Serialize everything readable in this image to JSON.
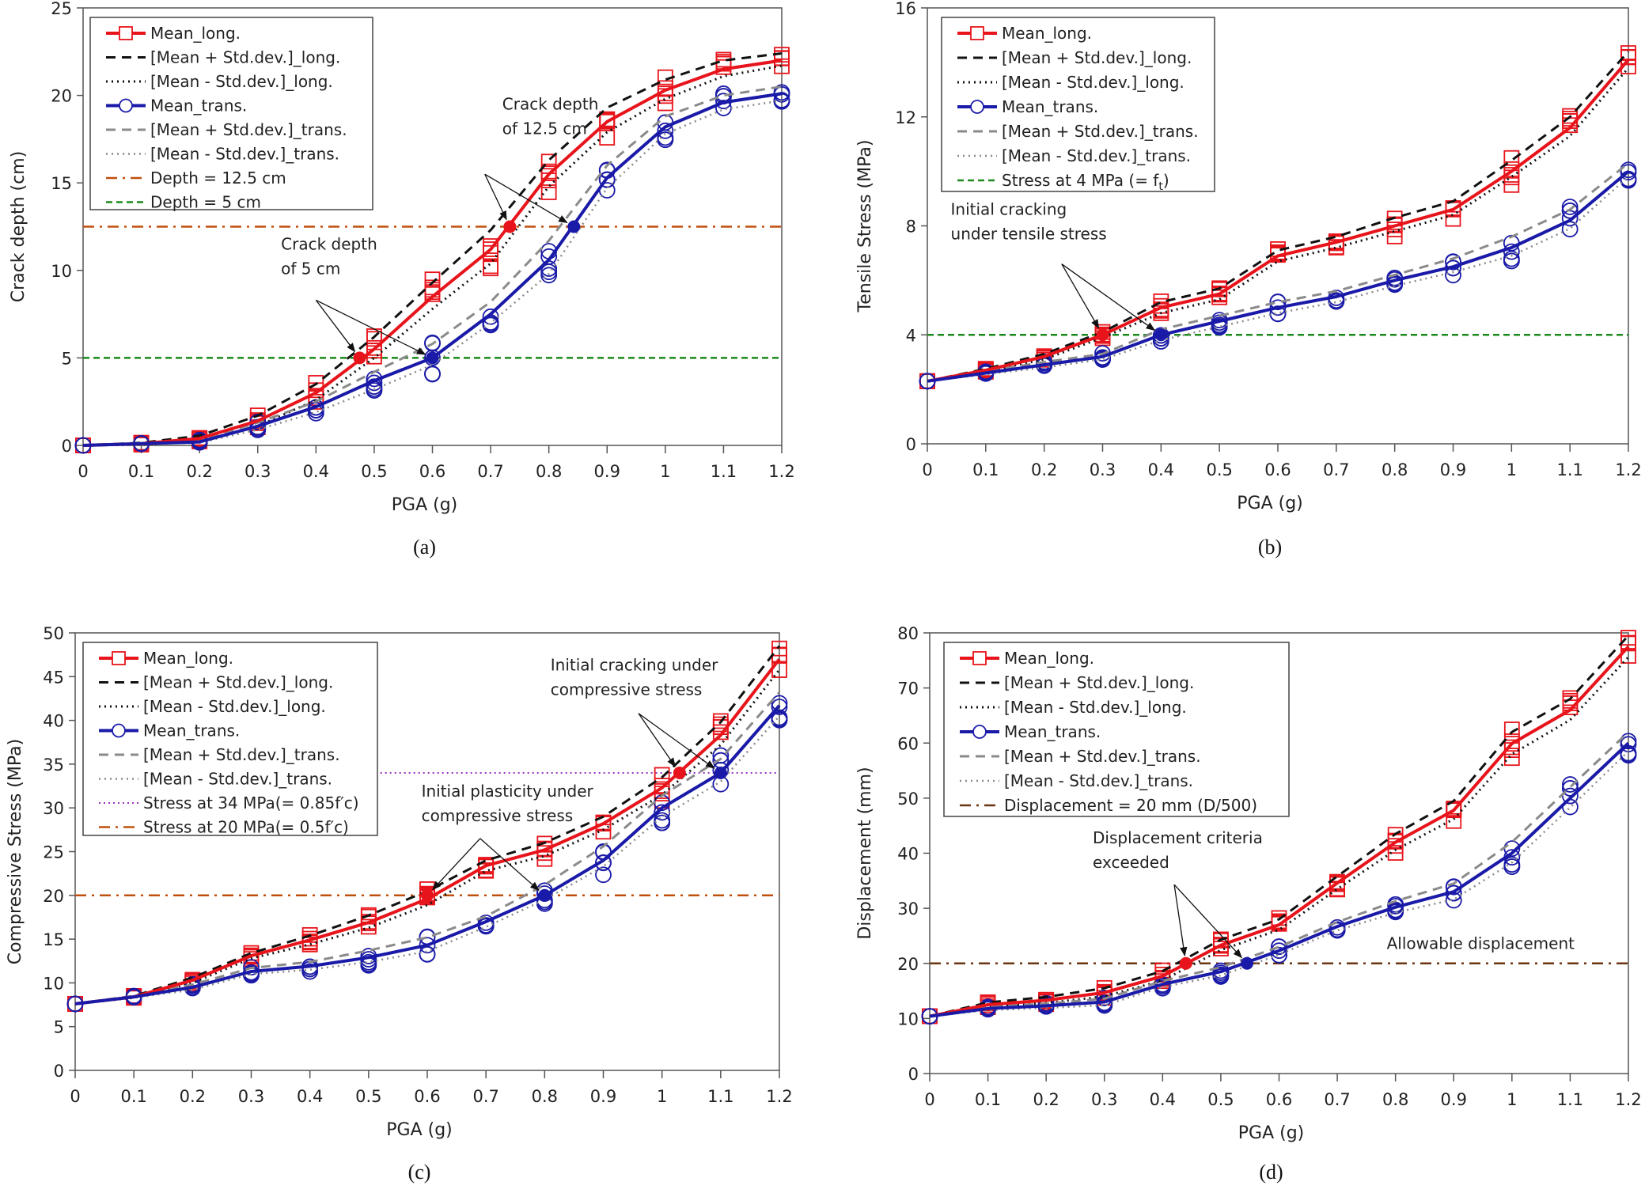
{
  "chart_data": [
    {
      "id": "a",
      "type": "line",
      "caption": "(a)",
      "xlabel": "PGA (g)",
      "ylabel": "Crack depth (cm)",
      "x": [
        0,
        0.1,
        0.2,
        0.3,
        0.4,
        0.5,
        0.6,
        0.7,
        0.8,
        0.9,
        1,
        1.1,
        1.2
      ],
      "xticks": [
        "0",
        "0.1",
        "0.2",
        "0.3",
        "0.4",
        "0.5",
        "0.6",
        "0.7",
        "0.8",
        "0.9",
        "1",
        "1.1",
        "1.2"
      ],
      "xlim": [
        0,
        1.2
      ],
      "ylim": [
        0,
        25
      ],
      "yticks": [
        0,
        5,
        10,
        15,
        20,
        25
      ],
      "series": [
        {
          "name": "Mean_long.",
          "style": "mean_long",
          "values": [
            0,
            0.1,
            0.4,
            1.4,
            3.0,
            5.5,
            8.5,
            11.2,
            15.5,
            18.5,
            20.3,
            21.5,
            22.0
          ]
        },
        {
          "name": "[Mean + Std.dev.]_long.",
          "style": "plus_long",
          "values": [
            0,
            0.15,
            0.55,
            1.7,
            3.5,
            6.2,
            9.3,
            12.3,
            16.3,
            19.3,
            20.9,
            22.0,
            22.4
          ]
        },
        {
          "name": "[Mean - Std.dev.]_long.",
          "style": "minus_long",
          "values": [
            0,
            0.05,
            0.25,
            1.1,
            2.6,
            5.0,
            7.8,
            10.4,
            14.8,
            17.9,
            19.8,
            21.1,
            21.7
          ]
        },
        {
          "name": "Mean_trans.",
          "style": "mean_trans",
          "values": [
            0,
            0.1,
            0.2,
            1.1,
            2.2,
            3.7,
            5.0,
            7.5,
            10.6,
            15.3,
            18.2,
            19.6,
            20.1
          ]
        },
        {
          "name": "[Mean + Std.dev.]_trans.",
          "style": "plus_trans",
          "values": [
            0,
            0.12,
            0.3,
            1.3,
            2.5,
            4.2,
            5.8,
            8.2,
            11.7,
            16.0,
            18.8,
            20.0,
            20.5
          ]
        },
        {
          "name": "[Mean - Std.dev.]_trans.",
          "style": "minus_trans",
          "values": [
            0,
            0.08,
            0.15,
            0.9,
            1.9,
            3.2,
            4.6,
            7.0,
            9.8,
            14.7,
            17.8,
            19.2,
            19.7
          ]
        }
      ],
      "reference_lines": [
        {
          "name": "Depth = 12.5 cm",
          "style": "ref_brown_dashdot",
          "value": 12.5
        },
        {
          "name": "Depth = 5 cm",
          "style": "ref_green_dash",
          "value": 5
        }
      ],
      "highlight_points": [
        {
          "series": "long",
          "x": 0.475,
          "y": 5
        },
        {
          "series": "trans",
          "x": 0.6,
          "y": 5
        },
        {
          "series": "long",
          "x": 0.733,
          "y": 12.5
        },
        {
          "series": "trans",
          "x": 0.843,
          "y": 12.5
        }
      ],
      "annotations": [
        {
          "lines": [
            "Crack depth",
            "of 12.5 cm"
          ],
          "tx": 0.72,
          "ty": 19.2,
          "targets": [
            [
              0.733,
              12.5
            ],
            [
              0.843,
              12.5
            ]
          ],
          "from": [
            0.69,
            15.5
          ]
        },
        {
          "lines": [
            "Crack depth",
            "of 5 cm"
          ],
          "tx": 0.34,
          "ty": 11.2,
          "targets": [
            [
              0.475,
              5
            ],
            [
              0.6,
              5
            ]
          ],
          "from": [
            0.4,
            8.3
          ]
        }
      ],
      "legend": [
        "Mean_long.",
        "[Mean + Std.dev.]_long.",
        "[Mean - Std.dev.]_long.",
        "Mean_trans.",
        "[Mean + Std.dev.]_trans.",
        "[Mean - Std.dev.]_trans.",
        "Depth = 12.5 cm",
        "Depth = 5 cm"
      ],
      "legend_position": "top-left"
    },
    {
      "id": "b",
      "type": "line",
      "caption": "(b)",
      "xlabel": "PGA (g)",
      "ylabel": "Tensile Stress (MPa)",
      "x": [
        0,
        0.1,
        0.2,
        0.3,
        0.4,
        0.5,
        0.6,
        0.7,
        0.8,
        0.9,
        1,
        1.1,
        1.2
      ],
      "xticks": [
        "0",
        "0.1",
        "0.2",
        "0.3",
        "0.4",
        "0.5",
        "0.6",
        "0.7",
        "0.8",
        "0.9",
        "1",
        "1.1",
        "1.2"
      ],
      "xlim": [
        0,
        1.2
      ],
      "ylim": [
        0,
        16
      ],
      "yticks": [
        0,
        4,
        8,
        12,
        16
      ],
      "series": [
        {
          "name": "Mean_long.",
          "style": "mean_long",
          "values": [
            2.3,
            2.7,
            3.2,
            4.0,
            5.0,
            5.5,
            6.9,
            7.4,
            8.0,
            8.6,
            10.0,
            11.6,
            14.1
          ]
        },
        {
          "name": "[Mean + Std.dev.]_long.",
          "style": "plus_long",
          "values": [
            2.3,
            2.75,
            3.3,
            4.1,
            5.2,
            5.7,
            7.1,
            7.6,
            8.3,
            8.9,
            10.4,
            12.0,
            14.4
          ]
        },
        {
          "name": "[Mean - Std.dev.]_long.",
          "style": "minus_long",
          "values": [
            2.3,
            2.65,
            3.1,
            3.9,
            4.8,
            5.3,
            6.7,
            7.2,
            7.8,
            8.4,
            9.8,
            11.3,
            13.8
          ]
        },
        {
          "name": "Mean_trans.",
          "style": "mean_trans",
          "values": [
            2.3,
            2.6,
            2.9,
            3.2,
            4.0,
            4.5,
            5.0,
            5.4,
            6.0,
            6.5,
            7.2,
            8.2,
            10.0
          ]
        },
        {
          "name": "[Mean + Std.dev.]_trans.",
          "style": "plus_trans",
          "values": [
            2.3,
            2.65,
            3.0,
            3.3,
            4.2,
            4.7,
            5.2,
            5.6,
            6.2,
            6.8,
            7.6,
            8.6,
            10.3
          ]
        },
        {
          "name": "[Mean - Std.dev.]_trans.",
          "style": "minus_trans",
          "values": [
            2.3,
            2.55,
            2.8,
            3.1,
            3.8,
            4.3,
            4.8,
            5.2,
            5.8,
            6.3,
            6.9,
            7.9,
            9.8
          ]
        }
      ],
      "reference_lines": [
        {
          "name": "Stress at 4 MPa (= f_t)",
          "style": "ref_green_dash",
          "value": 4
        }
      ],
      "highlight_points": [
        {
          "series": "long",
          "x": 0.3,
          "y": 4
        },
        {
          "series": "trans",
          "x": 0.4,
          "y": 4
        }
      ],
      "annotations": [
        {
          "lines": [
            "Initial cracking",
            "under tensile stress"
          ],
          "tx": 0.04,
          "ty": 8.4,
          "targets": [
            [
              0.3,
              4
            ],
            [
              0.4,
              4
            ]
          ],
          "from": [
            0.23,
            6.6
          ]
        }
      ],
      "legend": [
        "Mean_long.",
        "[Mean + Std.dev.]_long.",
        "[Mean - Std.dev.]_long.",
        "Mean_trans.",
        "[Mean + Std.dev.]_trans.",
        "[Mean - Std.dev.]_trans.",
        "Stress at 4 MPa (= f",
        "t",
        ")"
      ],
      "legend_position": "top-left"
    },
    {
      "id": "c",
      "type": "line",
      "caption": "(c)",
      "xlabel": "PGA (g)",
      "ylabel": "Compressive Stress (MPa)",
      "x": [
        0,
        0.1,
        0.2,
        0.3,
        0.4,
        0.5,
        0.6,
        0.7,
        0.8,
        0.9,
        1,
        1.1,
        1.2
      ],
      "xticks": [
        "0",
        "0.1",
        "0.2",
        "0.3",
        "0.4",
        "0.5",
        "0.6",
        "0.7",
        "0.8",
        "0.9",
        "1",
        "1.1",
        "1.2"
      ],
      "xlim": [
        0,
        1.2
      ],
      "ylim": [
        0,
        50
      ],
      "yticks": [
        0,
        5,
        10,
        15,
        20,
        25,
        30,
        35,
        40,
        45,
        50
      ],
      "series": [
        {
          "name": "Mean_long.",
          "style": "mean_long",
          "values": [
            7.6,
            8.4,
            10.3,
            13.1,
            14.9,
            16.9,
            19.6,
            23.4,
            25.2,
            28.2,
            32.3,
            38.3,
            47.0
          ]
        },
        {
          "name": "[Mean + Std.dev.]_long.",
          "style": "plus_long",
          "values": [
            7.6,
            8.5,
            10.6,
            13.4,
            15.4,
            17.7,
            20.5,
            24.0,
            26.0,
            29.0,
            33.5,
            39.8,
            48.5
          ]
        },
        {
          "name": "[Mean - Std.dev.]_long.",
          "style": "minus_long",
          "values": [
            7.6,
            8.3,
            10.0,
            12.8,
            14.4,
            16.3,
            18.9,
            22.8,
            24.5,
            27.5,
            31.5,
            37.2,
            45.8
          ]
        },
        {
          "name": "Mean_trans.",
          "style": "mean_trans",
          "values": [
            7.6,
            8.4,
            9.5,
            11.3,
            11.9,
            12.9,
            14.3,
            17.0,
            20.0,
            24.0,
            30.0,
            34.0,
            41.7
          ]
        },
        {
          "name": "[Mean + Std.dev.]_trans.",
          "style": "plus_trans",
          "values": [
            7.6,
            8.5,
            9.8,
            11.7,
            12.4,
            13.7,
            15.2,
            17.6,
            21.2,
            25.6,
            31.4,
            35.6,
            43.2
          ]
        },
        {
          "name": "[Mean - Std.dev.]_trans.",
          "style": "minus_trans",
          "values": [
            7.6,
            8.3,
            9.2,
            11.0,
            11.5,
            12.4,
            13.6,
            16.4,
            19.5,
            23.3,
            29.0,
            33.0,
            40.5
          ]
        }
      ],
      "reference_lines": [
        {
          "name": "Stress at 34 MPa(= 0.85f'c)",
          "style": "ref_purple_dot",
          "value": 34,
          "xstart": 0.52
        },
        {
          "name": "Stress at 20 MPa(= 0.5f'c)",
          "style": "ref_brown_dashdot",
          "value": 20
        }
      ],
      "highlight_points": [
        {
          "series": "long",
          "x": 0.6,
          "y": 20
        },
        {
          "series": "trans",
          "x": 0.8,
          "y": 20
        },
        {
          "series": "long",
          "x": 1.03,
          "y": 34
        },
        {
          "series": "trans",
          "x": 1.1,
          "y": 34
        }
      ],
      "annotations": [
        {
          "lines": [
            "Initial plasticity under",
            "compressive stress"
          ],
          "tx": 0.59,
          "ty": 31.3,
          "targets": [
            [
              0.6,
              20
            ],
            [
              0.8,
              20
            ]
          ],
          "from": [
            0.69,
            26.5
          ]
        },
        {
          "lines": [
            "Initial cracking under",
            "compressive stress"
          ],
          "tx": 0.81,
          "ty": 45.7,
          "targets": [
            [
              1.03,
              34
            ],
            [
              1.1,
              34
            ]
          ],
          "from": [
            0.96,
            40.8
          ]
        }
      ],
      "legend": [
        "Mean_long.",
        "[Mean + Std.dev.]_long.",
        "[Mean - Std.dev.]_long.",
        "Mean_trans.",
        "[Mean + Std.dev.]_trans.",
        "[Mean - Std.dev.]_trans.",
        "Stress at 34 MPa(= 0.85f′c)",
        "Stress at 20 MPa(= 0.5f′c)"
      ],
      "legend_position": "top-left"
    },
    {
      "id": "d",
      "type": "line",
      "caption": "(d)",
      "xlabel": "PGA (g)",
      "ylabel": "Displacement (mm)",
      "x": [
        0,
        0.1,
        0.2,
        0.3,
        0.4,
        0.5,
        0.6,
        0.7,
        0.8,
        0.9,
        1,
        1.1,
        1.2
      ],
      "xticks": [
        "0",
        "0.1",
        "0.2",
        "0.3",
        "0.4",
        "0.5",
        "0.6",
        "0.7",
        "0.8",
        "0.9",
        "1",
        "1.1",
        "1.2"
      ],
      "xlim": [
        0,
        1.2
      ],
      "ylim": [
        0,
        80
      ],
      "yticks": [
        0,
        10,
        20,
        30,
        40,
        50,
        60,
        70,
        80
      ],
      "series": [
        {
          "name": "Mean_long.",
          "style": "mean_long",
          "values": [
            10.4,
            12.5,
            13.3,
            14.7,
            17.7,
            23.3,
            27.0,
            34.6,
            42.0,
            47.8,
            59.9,
            66.0,
            77.5
          ]
        },
        {
          "name": "[Mean + Std.dev.]_long.",
          "style": "plus_long",
          "values": [
            10.4,
            12.9,
            13.9,
            15.5,
            18.6,
            24.3,
            28.0,
            35.8,
            43.5,
            49.5,
            62.0,
            68.0,
            79.5
          ]
        },
        {
          "name": "[Mean - Std.dev.]_long.",
          "style": "minus_long",
          "values": [
            10.4,
            12.1,
            12.8,
            14.0,
            16.9,
            22.4,
            26.1,
            33.5,
            40.6,
            46.2,
            58.0,
            64.2,
            75.6
          ]
        },
        {
          "name": "Mean_trans.",
          "style": "mean_trans",
          "values": [
            10.4,
            11.8,
            12.3,
            13.0,
            16.2,
            18.5,
            22.3,
            26.7,
            30.2,
            33.0,
            40.0,
            50.0,
            60.0
          ]
        },
        {
          "name": "[Mean + Std.dev.]_trans.",
          "style": "plus_trans",
          "values": [
            10.4,
            12.1,
            12.7,
            13.6,
            16.8,
            19.3,
            23.0,
            27.5,
            31.3,
            34.5,
            42.0,
            52.0,
            62.0
          ]
        },
        {
          "name": "[Mean - Std.dev.]_trans.",
          "style": "minus_trans",
          "values": [
            10.4,
            11.5,
            11.9,
            12.4,
            15.7,
            17.8,
            21.6,
            26.0,
            29.2,
            31.6,
            38.3,
            48.3,
            58.5
          ]
        }
      ],
      "reference_lines": [
        {
          "name": "Displacement = 20 mm (D/500)",
          "style": "ref_darkbrown_dashdot",
          "value": 20
        }
      ],
      "highlight_points": [
        {
          "series": "long",
          "x": 0.44,
          "y": 20
        },
        {
          "series": "trans",
          "x": 0.545,
          "y": 20
        }
      ],
      "annotations": [
        {
          "lines": [
            "Displacement criteria",
            "exceeded"
          ],
          "tx": 0.28,
          "ty": 41.8,
          "targets": [
            [
              0.44,
              20
            ],
            [
              0.545,
              20
            ]
          ],
          "from": [
            0.42,
            34.3
          ]
        },
        {
          "lines": [
            "Allowable displacement"
          ],
          "tx": 0.785,
          "ty": 22.6,
          "targets": [],
          "from": null
        }
      ],
      "legend": [
        "Mean_long.",
        "[Mean + Std.dev.]_long.",
        "[Mean - Std.dev.]_long.",
        "Mean_trans.",
        "[Mean + Std.dev.]_trans.",
        "[Mean - Std.dev.]_trans.",
        "Displacement = 20 mm (D/500)"
      ],
      "legend_position": "top-left"
    }
  ],
  "colors": {
    "mean_long": "#e8141b",
    "plus_long": "#111111",
    "minus_long": "#111111",
    "mean_trans": "#1a1aa8",
    "plus_trans": "#8a8a8a",
    "minus_trans": "#8a8a8a",
    "ref_green": "#1a8a1a",
    "ref_brown": "#c0500e",
    "ref_darkbrown": "#6b3410",
    "ref_purple": "#9b30c0",
    "axis": "#555555"
  }
}
